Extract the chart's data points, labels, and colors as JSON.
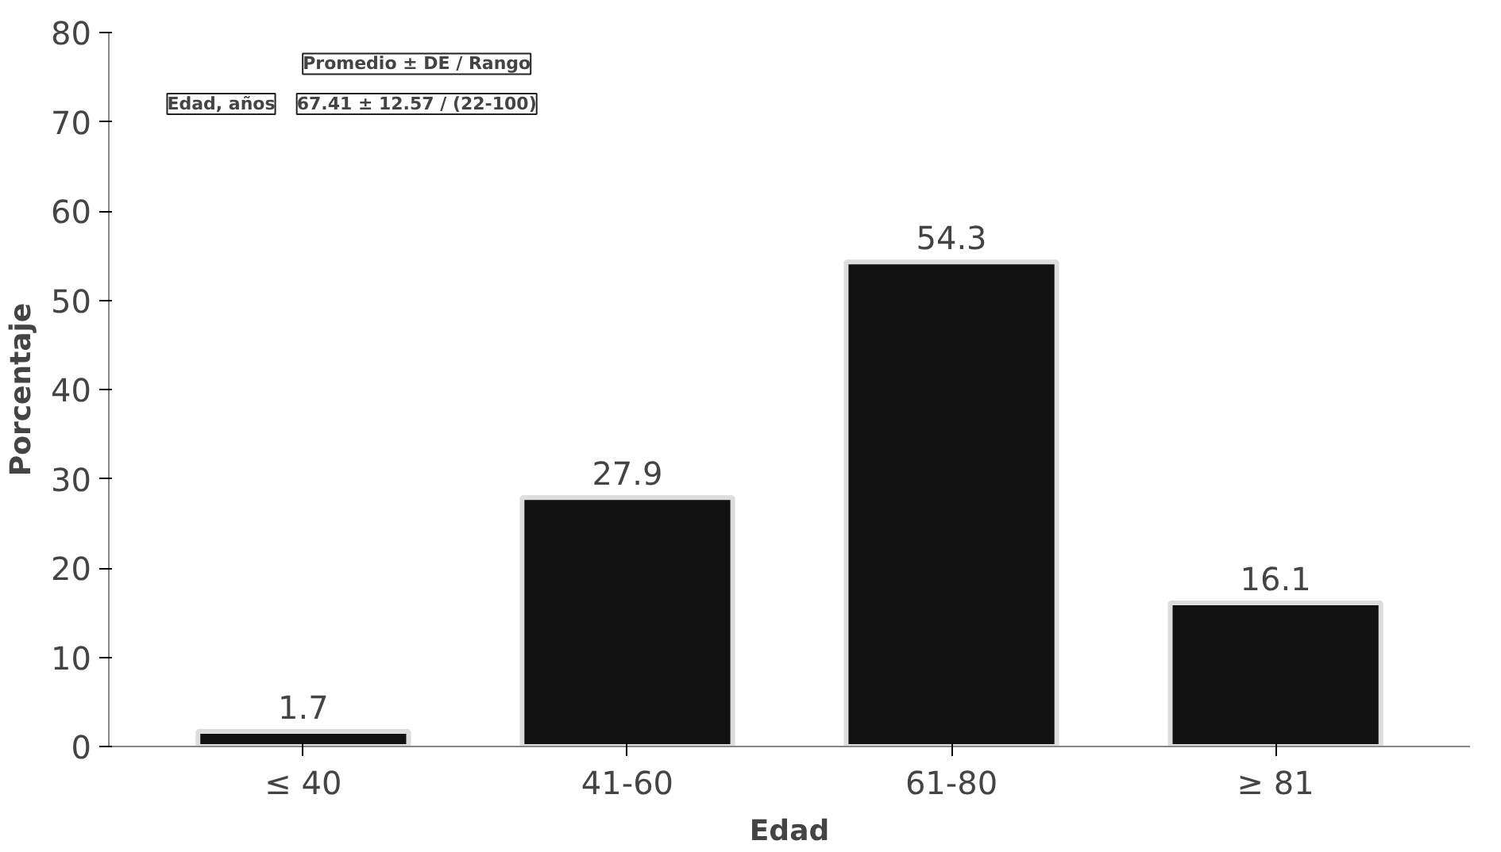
{
  "chart_data": {
    "type": "bar",
    "xlabel": "Edad",
    "ylabel": "Porcentaje",
    "categories": [
      "≤ 40",
      "41-60",
      "61-80",
      "≥ 81"
    ],
    "values": [
      1.7,
      27.9,
      54.3,
      16.1
    ],
    "color": "#111111",
    "ylim": [
      0,
      80
    ],
    "yticks": [
      0,
      10,
      20,
      30,
      40,
      50,
      60,
      70,
      80
    ],
    "grid": false,
    "data_labels": true,
    "annotations": [
      "Promedio ± DE / Rango",
      "Edad, años",
      "67.41 ± 12.57 / (22-100)"
    ]
  }
}
